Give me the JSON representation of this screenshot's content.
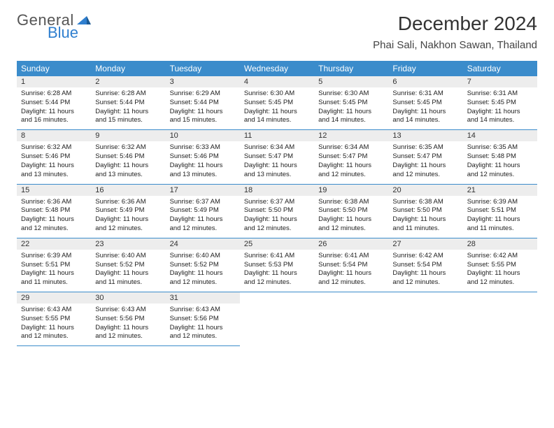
{
  "brand": {
    "line1": "General",
    "line2": "Blue",
    "accent_color": "#2f7fcf"
  },
  "title": "December 2024",
  "location": "Phai Sali, Nakhon Sawan, Thailand",
  "colors": {
    "header_bg": "#3b8ccb",
    "header_fg": "#ffffff",
    "daynum_bg": "#ededed",
    "rule": "#3b8ccb",
    "text": "#222222"
  },
  "day_names": [
    "Sunday",
    "Monday",
    "Tuesday",
    "Wednesday",
    "Thursday",
    "Friday",
    "Saturday"
  ],
  "weeks": [
    [
      {
        "n": 1,
        "sr": "6:28 AM",
        "ss": "5:44 PM",
        "dl": "11 hours and 16 minutes."
      },
      {
        "n": 2,
        "sr": "6:28 AM",
        "ss": "5:44 PM",
        "dl": "11 hours and 15 minutes."
      },
      {
        "n": 3,
        "sr": "6:29 AM",
        "ss": "5:44 PM",
        "dl": "11 hours and 15 minutes."
      },
      {
        "n": 4,
        "sr": "6:30 AM",
        "ss": "5:45 PM",
        "dl": "11 hours and 14 minutes."
      },
      {
        "n": 5,
        "sr": "6:30 AM",
        "ss": "5:45 PM",
        "dl": "11 hours and 14 minutes."
      },
      {
        "n": 6,
        "sr": "6:31 AM",
        "ss": "5:45 PM",
        "dl": "11 hours and 14 minutes."
      },
      {
        "n": 7,
        "sr": "6:31 AM",
        "ss": "5:45 PM",
        "dl": "11 hours and 14 minutes."
      }
    ],
    [
      {
        "n": 8,
        "sr": "6:32 AM",
        "ss": "5:46 PM",
        "dl": "11 hours and 13 minutes."
      },
      {
        "n": 9,
        "sr": "6:32 AM",
        "ss": "5:46 PM",
        "dl": "11 hours and 13 minutes."
      },
      {
        "n": 10,
        "sr": "6:33 AM",
        "ss": "5:46 PM",
        "dl": "11 hours and 13 minutes."
      },
      {
        "n": 11,
        "sr": "6:34 AM",
        "ss": "5:47 PM",
        "dl": "11 hours and 13 minutes."
      },
      {
        "n": 12,
        "sr": "6:34 AM",
        "ss": "5:47 PM",
        "dl": "11 hours and 12 minutes."
      },
      {
        "n": 13,
        "sr": "6:35 AM",
        "ss": "5:47 PM",
        "dl": "11 hours and 12 minutes."
      },
      {
        "n": 14,
        "sr": "6:35 AM",
        "ss": "5:48 PM",
        "dl": "11 hours and 12 minutes."
      }
    ],
    [
      {
        "n": 15,
        "sr": "6:36 AM",
        "ss": "5:48 PM",
        "dl": "11 hours and 12 minutes."
      },
      {
        "n": 16,
        "sr": "6:36 AM",
        "ss": "5:49 PM",
        "dl": "11 hours and 12 minutes."
      },
      {
        "n": 17,
        "sr": "6:37 AM",
        "ss": "5:49 PM",
        "dl": "11 hours and 12 minutes."
      },
      {
        "n": 18,
        "sr": "6:37 AM",
        "ss": "5:50 PM",
        "dl": "11 hours and 12 minutes."
      },
      {
        "n": 19,
        "sr": "6:38 AM",
        "ss": "5:50 PM",
        "dl": "11 hours and 12 minutes."
      },
      {
        "n": 20,
        "sr": "6:38 AM",
        "ss": "5:50 PM",
        "dl": "11 hours and 11 minutes."
      },
      {
        "n": 21,
        "sr": "6:39 AM",
        "ss": "5:51 PM",
        "dl": "11 hours and 11 minutes."
      }
    ],
    [
      {
        "n": 22,
        "sr": "6:39 AM",
        "ss": "5:51 PM",
        "dl": "11 hours and 11 minutes."
      },
      {
        "n": 23,
        "sr": "6:40 AM",
        "ss": "5:52 PM",
        "dl": "11 hours and 11 minutes."
      },
      {
        "n": 24,
        "sr": "6:40 AM",
        "ss": "5:52 PM",
        "dl": "11 hours and 12 minutes."
      },
      {
        "n": 25,
        "sr": "6:41 AM",
        "ss": "5:53 PM",
        "dl": "11 hours and 12 minutes."
      },
      {
        "n": 26,
        "sr": "6:41 AM",
        "ss": "5:54 PM",
        "dl": "11 hours and 12 minutes."
      },
      {
        "n": 27,
        "sr": "6:42 AM",
        "ss": "5:54 PM",
        "dl": "11 hours and 12 minutes."
      },
      {
        "n": 28,
        "sr": "6:42 AM",
        "ss": "5:55 PM",
        "dl": "11 hours and 12 minutes."
      }
    ],
    [
      {
        "n": 29,
        "sr": "6:43 AM",
        "ss": "5:55 PM",
        "dl": "11 hours and 12 minutes."
      },
      {
        "n": 30,
        "sr": "6:43 AM",
        "ss": "5:56 PM",
        "dl": "11 hours and 12 minutes."
      },
      {
        "n": 31,
        "sr": "6:43 AM",
        "ss": "5:56 PM",
        "dl": "11 hours and 12 minutes."
      },
      null,
      null,
      null,
      null
    ]
  ],
  "labels": {
    "sunrise": "Sunrise:",
    "sunset": "Sunset:",
    "daylight": "Daylight:"
  }
}
